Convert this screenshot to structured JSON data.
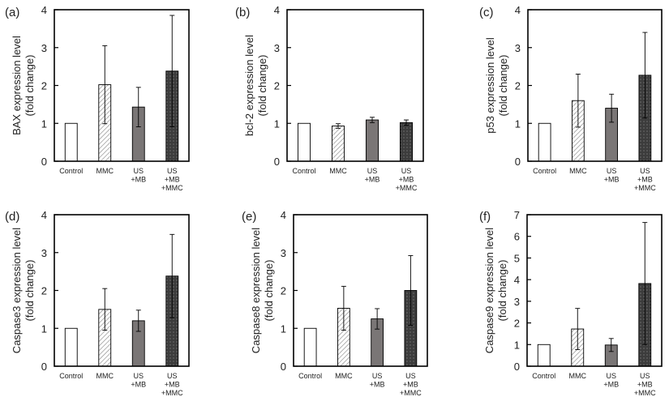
{
  "chart_data": [
    {
      "type": "bar",
      "panel_label": "(a)",
      "ylabel": [
        "BAX expression level",
        "(fold change)"
      ],
      "categories": [
        [
          "Control"
        ],
        [
          "MMC"
        ],
        [
          "US",
          "+MB"
        ],
        [
          "US",
          "+MB",
          "+MMC"
        ]
      ],
      "values": [
        1.0,
        2.02,
        1.43,
        2.38
      ],
      "errors": [
        0,
        1.03,
        0.52,
        1.47
      ],
      "ylim": [
        0,
        4
      ],
      "yticks": [
        0,
        1,
        2,
        3,
        4
      ],
      "grid": false
    },
    {
      "type": "bar",
      "panel_label": "(b)",
      "ylabel": [
        "bcl-2 expression level",
        "(fold change)"
      ],
      "categories": [
        [
          "Control"
        ],
        [
          "MMC"
        ],
        [
          "US",
          "+MB"
        ],
        [
          "US",
          "+MB",
          "+MMC"
        ]
      ],
      "values": [
        1.0,
        0.93,
        1.09,
        1.02
      ],
      "errors": [
        0,
        0.06,
        0.07,
        0.07
      ],
      "ylim": [
        0,
        4
      ],
      "yticks": [
        0,
        1,
        2,
        3,
        4
      ],
      "grid": false
    },
    {
      "type": "bar",
      "panel_label": "(c)",
      "ylabel": [
        "p53 expression level",
        "(fold change)"
      ],
      "categories": [
        [
          "Control"
        ],
        [
          "MMC"
        ],
        [
          "US",
          "+MB"
        ],
        [
          "US",
          "+MB",
          "+MMC"
        ]
      ],
      "values": [
        1.0,
        1.6,
        1.4,
        2.27
      ],
      "errors": [
        0,
        0.7,
        0.37,
        1.13
      ],
      "ylim": [
        0,
        4
      ],
      "yticks": [
        0,
        1,
        2,
        3,
        4
      ],
      "grid": false
    },
    {
      "type": "bar",
      "panel_label": "(d)",
      "ylabel": [
        "Caspase3 expression level",
        "(fold change)"
      ],
      "categories": [
        [
          "Control"
        ],
        [
          "MMC"
        ],
        [
          "US",
          "+MB"
        ],
        [
          "US",
          "+MB",
          "+MMC"
        ]
      ],
      "values": [
        1.0,
        1.5,
        1.2,
        2.38
      ],
      "errors": [
        0,
        0.55,
        0.28,
        1.1
      ],
      "ylim": [
        0,
        4
      ],
      "yticks": [
        0,
        1,
        2,
        3,
        4
      ],
      "grid": false
    },
    {
      "type": "bar",
      "panel_label": "(e)",
      "ylabel": [
        "Caspase8 expression level",
        "(fold change)"
      ],
      "categories": [
        [
          "Control"
        ],
        [
          "MMC"
        ],
        [
          "US",
          "+MB"
        ],
        [
          "US",
          "+MB",
          "+MMC"
        ]
      ],
      "values": [
        1.0,
        1.53,
        1.25,
        2.0
      ],
      "errors": [
        0,
        0.58,
        0.27,
        0.92
      ],
      "ylim": [
        0,
        4
      ],
      "yticks": [
        0,
        1,
        2,
        3,
        4
      ],
      "grid": false
    },
    {
      "type": "bar",
      "panel_label": "(f)",
      "ylabel": [
        "Caspase9 expression level",
        "(fold change)"
      ],
      "categories": [
        [
          "Control"
        ],
        [
          "MMC"
        ],
        [
          "US",
          "+MB"
        ],
        [
          "US",
          "+MB",
          "+MMC"
        ]
      ],
      "values": [
        1.0,
        1.72,
        0.98,
        3.82
      ],
      "errors": [
        0,
        0.95,
        0.3,
        2.82
      ],
      "ylim": [
        0,
        7
      ],
      "yticks": [
        0,
        1,
        2,
        3,
        4,
        5,
        6,
        7
      ],
      "grid": false
    }
  ],
  "style": {
    "axis_color": "#000000",
    "bar_fills": [
      "white",
      "hatch",
      "#7a7676",
      "dots"
    ],
    "dark_fill": "#3c3c3c",
    "hatch_color": "#8a8a8a"
  }
}
